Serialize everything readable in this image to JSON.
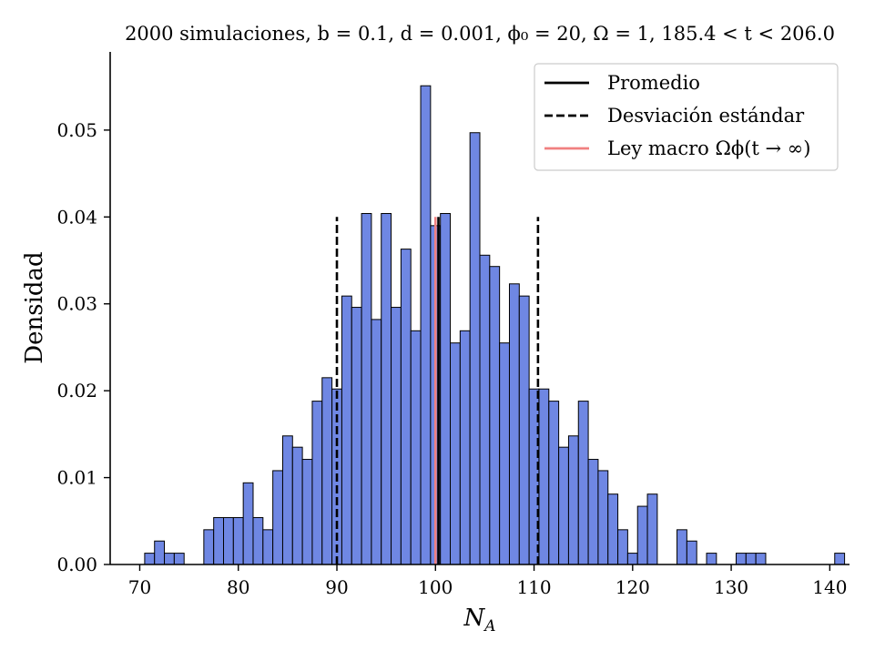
{
  "chart_data": {
    "type": "bar",
    "title": "2000 simulaciones, b = 0.1, d = 0.001, ϕ₀ = 20, Ω = 1, 185.4 < t < 206.0",
    "xlabel": "N_A",
    "ylabel": "Densidad",
    "xlim": [
      67,
      142
    ],
    "ylim": [
      0,
      0.059
    ],
    "xticks": [
      "70",
      "80",
      "90",
      "100",
      "110",
      "120",
      "130",
      "140"
    ],
    "yticks": [
      "0.00",
      "0.01",
      "0.02",
      "0.03",
      "0.04",
      "0.05"
    ],
    "bin_start": 70.5,
    "bin_width": 1,
    "bar_color": "#6f87e3",
    "values": [
      0.0013,
      0.0027,
      0.0013,
      0.0013,
      0,
      0,
      0.004,
      0.0054,
      0.0054,
      0.0054,
      0.0094,
      0.0054,
      0.004,
      0.0108,
      0.0148,
      0.0135,
      0.0121,
      0.0188,
      0.0215,
      0.0202,
      0.0309,
      0.0296,
      0.0404,
      0.0282,
      0.0404,
      0.0296,
      0.0363,
      0.0269,
      0.0551,
      0.039,
      0.0404,
      0.0255,
      0.0269,
      0.0497,
      0.0356,
      0.0343,
      0.0255,
      0.0323,
      0.0309,
      0.0202,
      0.0202,
      0.0188,
      0.0135,
      0.0148,
      0.0188,
      0.0121,
      0.0108,
      0.0081,
      0.004,
      0.0013,
      0.0067,
      0.0081,
      0,
      0,
      0.004,
      0.0027,
      0,
      0.0013,
      0,
      0,
      0.0013,
      0.0013,
      0.0013,
      0,
      0,
      0,
      0,
      0,
      0,
      0,
      0.0013
    ],
    "mean": 100.3,
    "std_lines": [
      90.0,
      110.4
    ],
    "vline_top": 0.04,
    "macro_law": 100.0,
    "macro_color": "#f08080",
    "legend": {
      "position": "top-right",
      "entries": [
        {
          "label": "Promedio",
          "style": "solid",
          "color": "#000000"
        },
        {
          "label": "Desviación estándar",
          "style": "dashed",
          "color": "#000000"
        },
        {
          "label": "Ley macro Ωϕ(t → ∞)",
          "style": "solid",
          "color": "#f08080"
        }
      ]
    }
  }
}
